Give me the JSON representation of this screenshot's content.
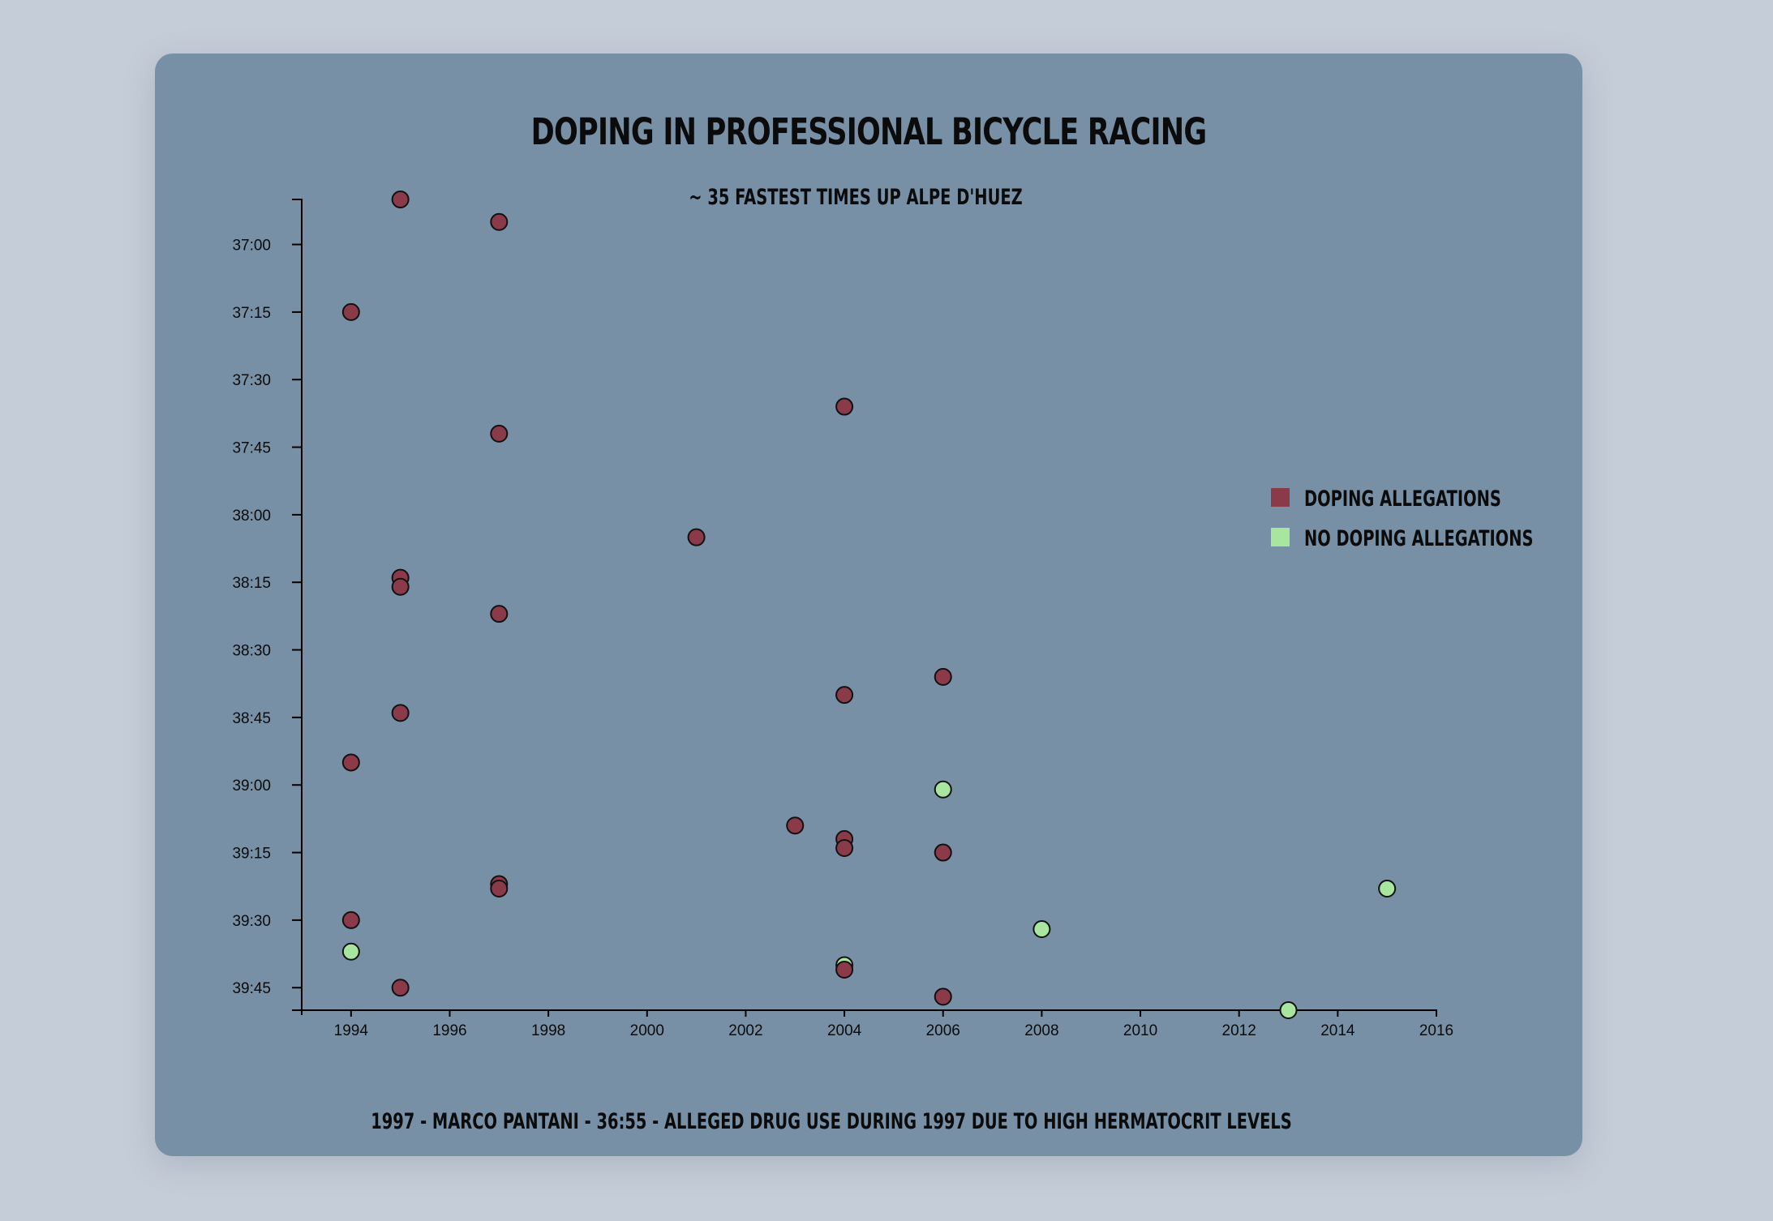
{
  "chart_data": {
    "type": "scatter",
    "title": "Doping in Professional Bicycle Racing",
    "subtitle": "~ 35 Fastest times up Alpe d'Huez",
    "annotation": "1997 - Marco Pantani - 36:55 - Alleged drug use during 1997 due to high hermatocrit levels",
    "x_axis": {
      "range": [
        1993,
        2016
      ],
      "ticks": [
        "1994",
        "1996",
        "1998",
        "2000",
        "2002",
        "2004",
        "2006",
        "2008",
        "2010",
        "2012",
        "2014",
        "2016"
      ],
      "tick_values": [
        1994,
        1996,
        1998,
        2000,
        2002,
        2004,
        2006,
        2008,
        2010,
        2012,
        2014,
        2016
      ]
    },
    "y_axis": {
      "range_seconds": [
        2210,
        2390
      ],
      "inverted": true,
      "ticks": [
        "37:00",
        "37:15",
        "37:30",
        "37:45",
        "38:00",
        "38:15",
        "38:30",
        "38:45",
        "39:00",
        "39:15",
        "39:30",
        "39:45"
      ],
      "tick_values_seconds": [
        2220,
        2235,
        2250,
        2265,
        2280,
        2295,
        2310,
        2325,
        2340,
        2355,
        2370,
        2385
      ]
    },
    "legend": {
      "placement": "right",
      "entries": [
        {
          "key": "doping",
          "label": "Doping Allegations",
          "color": "#8b3a4a"
        },
        {
          "key": "clean",
          "label": "No Doping Allegations",
          "color": "#a8e6a0"
        }
      ]
    },
    "points": [
      {
        "year": 1995,
        "seconds": 2210,
        "doping": true
      },
      {
        "year": 1997,
        "seconds": 2215,
        "doping": true
      },
      {
        "year": 1994,
        "seconds": 2235,
        "doping": true
      },
      {
        "year": 2004,
        "seconds": 2256,
        "doping": true
      },
      {
        "year": 1997,
        "seconds": 2262,
        "doping": true
      },
      {
        "year": 2001,
        "seconds": 2285,
        "doping": true
      },
      {
        "year": 1995,
        "seconds": 2294,
        "doping": true
      },
      {
        "year": 1995,
        "seconds": 2296,
        "doping": true
      },
      {
        "year": 1997,
        "seconds": 2302,
        "doping": true
      },
      {
        "year": 2006,
        "seconds": 2316,
        "doping": true
      },
      {
        "year": 2004,
        "seconds": 2320,
        "doping": true
      },
      {
        "year": 1995,
        "seconds": 2324,
        "doping": true
      },
      {
        "year": 1994,
        "seconds": 2335,
        "doping": true
      },
      {
        "year": 2006,
        "seconds": 2341,
        "doping": false
      },
      {
        "year": 2003,
        "seconds": 2349,
        "doping": true
      },
      {
        "year": 2004,
        "seconds": 2352,
        "doping": true
      },
      {
        "year": 2004,
        "seconds": 2354,
        "doping": true
      },
      {
        "year": 2006,
        "seconds": 2355,
        "doping": true
      },
      {
        "year": 1997,
        "seconds": 2362,
        "doping": true
      },
      {
        "year": 1997,
        "seconds": 2363,
        "doping": true
      },
      {
        "year": 2015,
        "seconds": 2363,
        "doping": false
      },
      {
        "year": 1994,
        "seconds": 2370,
        "doping": true
      },
      {
        "year": 2008,
        "seconds": 2372,
        "doping": false
      },
      {
        "year": 1994,
        "seconds": 2377,
        "doping": false
      },
      {
        "year": 2004,
        "seconds": 2380,
        "doping": false
      },
      {
        "year": 2004,
        "seconds": 2381,
        "doping": true
      },
      {
        "year": 1995,
        "seconds": 2385,
        "doping": true
      },
      {
        "year": 2006,
        "seconds": 2387,
        "doping": true
      },
      {
        "year": 2013,
        "seconds": 2390,
        "doping": false
      }
    ]
  }
}
